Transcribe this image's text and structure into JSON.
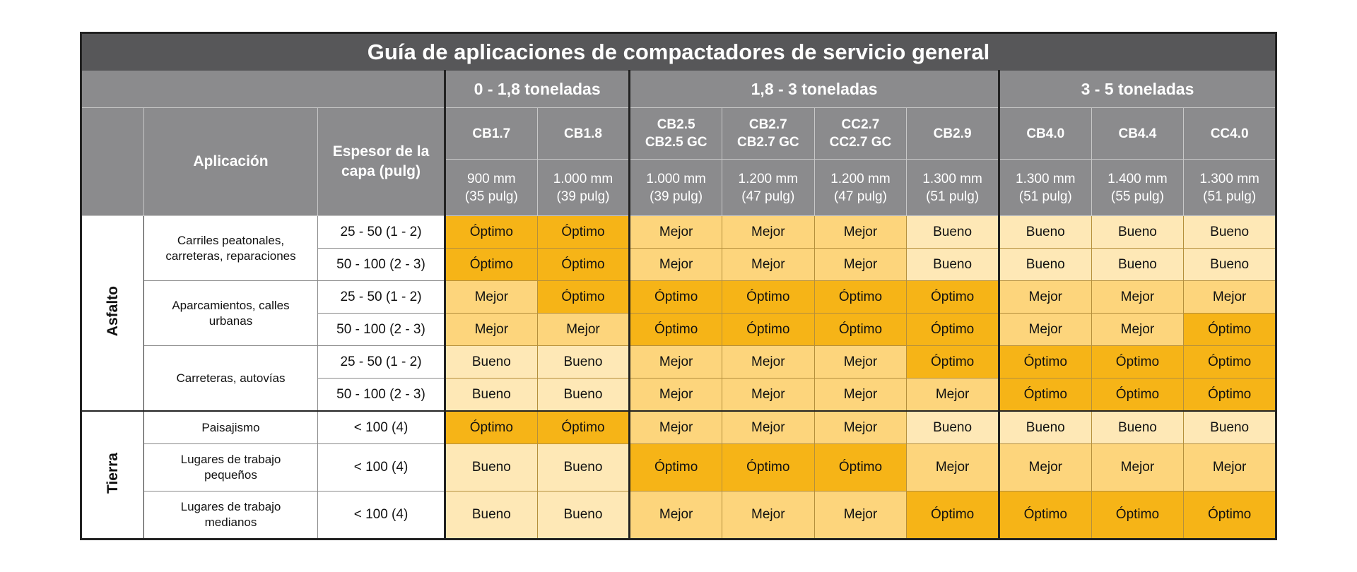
{
  "title": "Guía de aplicaciones de compactadores de servicio general",
  "header": {
    "application": "Aplicación",
    "thickness": "Espesor de la capa (pulg)"
  },
  "groups": [
    {
      "label": "0 - 1,8 toneladas",
      "models": [
        {
          "name": [
            "CB1.7"
          ],
          "width": [
            "900 mm",
            "(35 pulg)"
          ]
        },
        {
          "name": [
            "CB1.8"
          ],
          "width": [
            "1.000 mm",
            "(39 pulg)"
          ]
        }
      ]
    },
    {
      "label": "1,8 - 3 toneladas",
      "models": [
        {
          "name": [
            "CB2.5",
            "CB2.5 GC"
          ],
          "width": [
            "1.000 mm",
            "(39 pulg)"
          ]
        },
        {
          "name": [
            "CB2.7",
            "CB2.7 GC"
          ],
          "width": [
            "1.200 mm",
            "(47 pulg)"
          ]
        },
        {
          "name": [
            "CC2.7",
            "CC2.7 GC"
          ],
          "width": [
            "1.200 mm",
            "(47 pulg)"
          ]
        },
        {
          "name": [
            "CB2.9"
          ],
          "width": [
            "1.300 mm",
            "(51 pulg)"
          ]
        }
      ]
    },
    {
      "label": "3 - 5 toneladas",
      "models": [
        {
          "name": [
            "CB4.0"
          ],
          "width": [
            "1.300 mm",
            "(51 pulg)"
          ]
        },
        {
          "name": [
            "CB4.4"
          ],
          "width": [
            "1.400 mm",
            "(55 pulg)"
          ]
        },
        {
          "name": [
            "CC4.0"
          ],
          "width": [
            "1.300 mm",
            "(51 pulg)"
          ]
        }
      ]
    }
  ],
  "sections": [
    {
      "label": "Asfalto",
      "applications": [
        {
          "label": "Carriles peatonales, carreteras, reparaciones",
          "rows": [
            {
              "thickness": "25 - 50 (1 - 2)",
              "ratings": [
                "Óptimo",
                "Óptimo",
                "Mejor",
                "Mejor",
                "Mejor",
                "Bueno",
                "Bueno",
                "Bueno",
                "Bueno"
              ]
            },
            {
              "thickness": "50 - 100 (2 - 3)",
              "ratings": [
                "Óptimo",
                "Óptimo",
                "Mejor",
                "Mejor",
                "Mejor",
                "Bueno",
                "Bueno",
                "Bueno",
                "Bueno"
              ]
            }
          ]
        },
        {
          "label": "Aparcamientos, calles urbanas",
          "rows": [
            {
              "thickness": "25 - 50 (1 - 2)",
              "ratings": [
                "Mejor",
                "Óptimo",
                "Óptimo",
                "Óptimo",
                "Óptimo",
                "Óptimo",
                "Mejor",
                "Mejor",
                "Mejor"
              ]
            },
            {
              "thickness": "50 - 100 (2 - 3)",
              "ratings": [
                "Mejor",
                "Mejor",
                "Óptimo",
                "Óptimo",
                "Óptimo",
                "Óptimo",
                "Mejor",
                "Mejor",
                "Óptimo"
              ]
            }
          ]
        },
        {
          "label": "Carreteras, autovías",
          "rows": [
            {
              "thickness": "25 - 50 (1 - 2)",
              "ratings": [
                "Bueno",
                "Bueno",
                "Mejor",
                "Mejor",
                "Mejor",
                "Óptimo",
                "Óptimo",
                "Óptimo",
                "Óptimo"
              ]
            },
            {
              "thickness": "50 - 100 (2 - 3)",
              "ratings": [
                "Bueno",
                "Bueno",
                "Mejor",
                "Mejor",
                "Mejor",
                "Mejor",
                "Óptimo",
                "Óptimo",
                "Óptimo"
              ]
            }
          ]
        }
      ]
    },
    {
      "label": "Tierra",
      "applications": [
        {
          "label": "Paisajismo",
          "rows": [
            {
              "thickness": "< 100 (4)",
              "ratings": [
                "Óptimo",
                "Óptimo",
                "Mejor",
                "Mejor",
                "Mejor",
                "Bueno",
                "Bueno",
                "Bueno",
                "Bueno"
              ]
            }
          ]
        },
        {
          "label": "Lugares de trabajo pequeños",
          "rows": [
            {
              "thickness": "< 100 (4)",
              "ratings": [
                "Bueno",
                "Bueno",
                "Óptimo",
                "Óptimo",
                "Óptimo",
                "Mejor",
                "Mejor",
                "Mejor",
                "Mejor"
              ]
            }
          ]
        },
        {
          "label": "Lugares de trabajo medianos",
          "rows": [
            {
              "thickness": "< 100 (4)",
              "ratings": [
                "Bueno",
                "Bueno",
                "Mejor",
                "Mejor",
                "Mejor",
                "Óptimo",
                "Óptimo",
                "Óptimo",
                "Óptimo"
              ]
            }
          ]
        }
      ]
    }
  ],
  "rating_colors": {
    "Óptimo": "#f6b417",
    "Mejor": "#fdd57c",
    "Bueno": "#fee8b6"
  }
}
